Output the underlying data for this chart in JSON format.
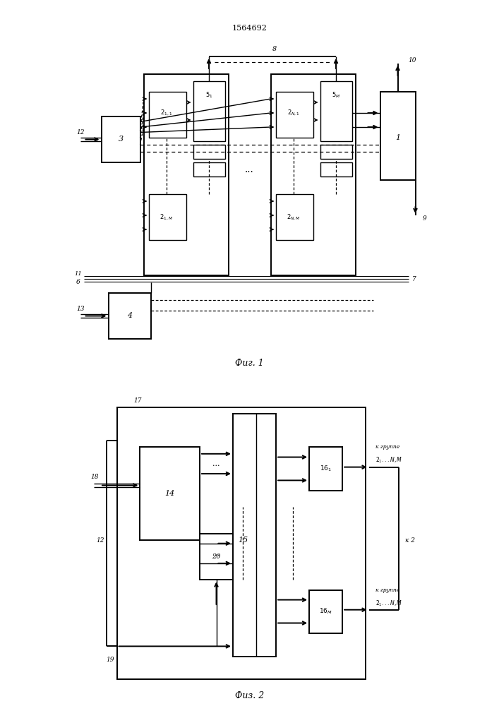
{
  "title": "1564692",
  "fig1_label": "Фиг. 1",
  "fig2_label": "Физ. 2",
  "background_color": "#ffffff",
  "line_color": "#000000",
  "lw": 1.0
}
